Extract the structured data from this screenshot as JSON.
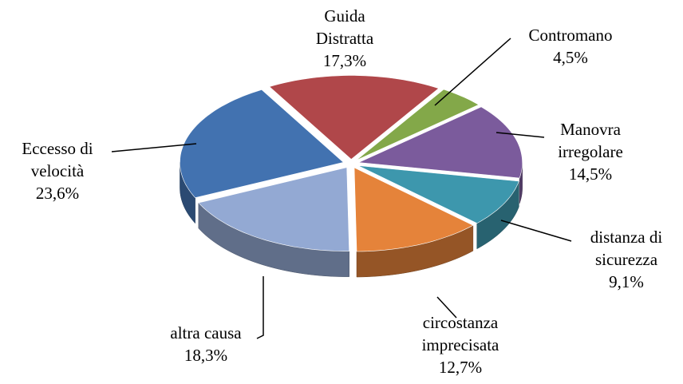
{
  "chart_data": {
    "type": "pie",
    "three_d": true,
    "categories": [
      "Guida Distratta",
      "Contromano",
      "Manovra irregolare",
      "distanza di sicurezza",
      "circostanza imprecisata",
      "altra causa",
      "Eccesso di velocità"
    ],
    "values": [
      17.3,
      4.5,
      14.5,
      9.1,
      12.7,
      18.3,
      23.6
    ],
    "value_labels": [
      "17,3%",
      "4,5%",
      "14,5%",
      "9,1%",
      "12,7%",
      "18,3%",
      "23,6%"
    ],
    "colors": [
      "#b0474a",
      "#83a849",
      "#7b5b9c",
      "#3d97ad",
      "#e5833a",
      "#93a9d3",
      "#4272b0"
    ]
  }
}
